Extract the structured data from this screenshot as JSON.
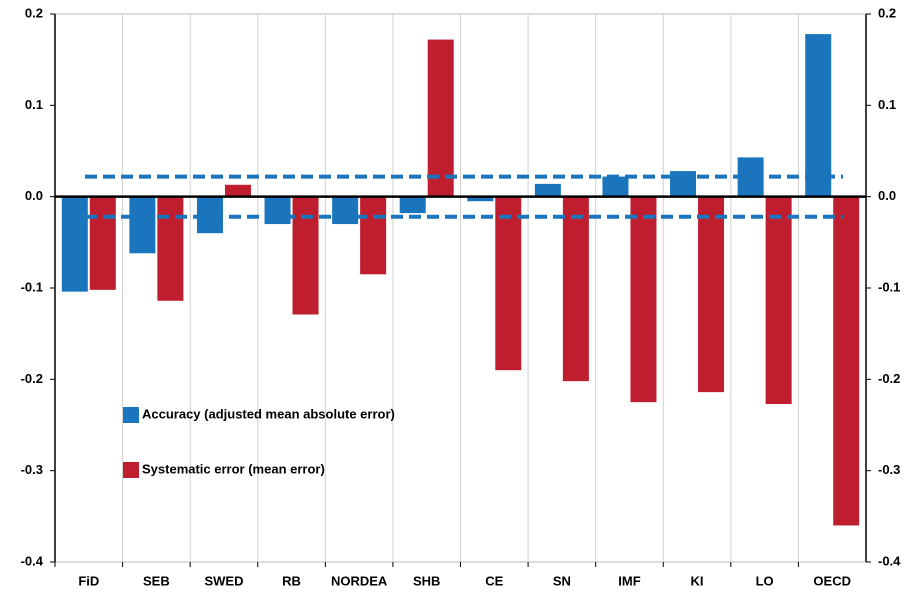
{
  "chart_data": {
    "type": "bar",
    "categories": [
      "FiD",
      "SEB",
      "SWED",
      "RB",
      "NORDEA",
      "SHB",
      "CE",
      "SN",
      "IMF",
      "KI",
      "LO",
      "OECD"
    ],
    "series": [
      {
        "name": "Accuracy (adjusted mean absolute error)",
        "color": "#1a75bc",
        "values": [
          -0.104,
          -0.062,
          -0.04,
          -0.03,
          -0.03,
          -0.018,
          -0.005,
          0.014,
          0.022,
          0.028,
          0.043,
          0.178
        ]
      },
      {
        "name": "Systematic error (mean error)",
        "color": "#be1e2d",
        "values": [
          -0.102,
          -0.114,
          0.013,
          -0.129,
          -0.085,
          0.172,
          -0.19,
          -0.202,
          -0.225,
          -0.214,
          -0.227,
          -0.36
        ]
      }
    ],
    "reference_lines": [
      0.022,
      -0.022
    ],
    "reference_color": "#1a75bc",
    "ylim": [
      -0.4,
      0.2
    ],
    "yticks": [
      0.2,
      0.1,
      {
        "value": 0,
        "label": "0.0"
      },
      -0.1,
      -0.2,
      -0.3,
      -0.4
    ],
    "y2lim": [
      -0.4,
      0.2
    ],
    "y2ticks": [
      0.2,
      0.1,
      {
        "value": 0,
        "label": "0.0"
      },
      -0.1,
      -0.2,
      -0.3,
      -0.4
    ],
    "grid": true
  }
}
